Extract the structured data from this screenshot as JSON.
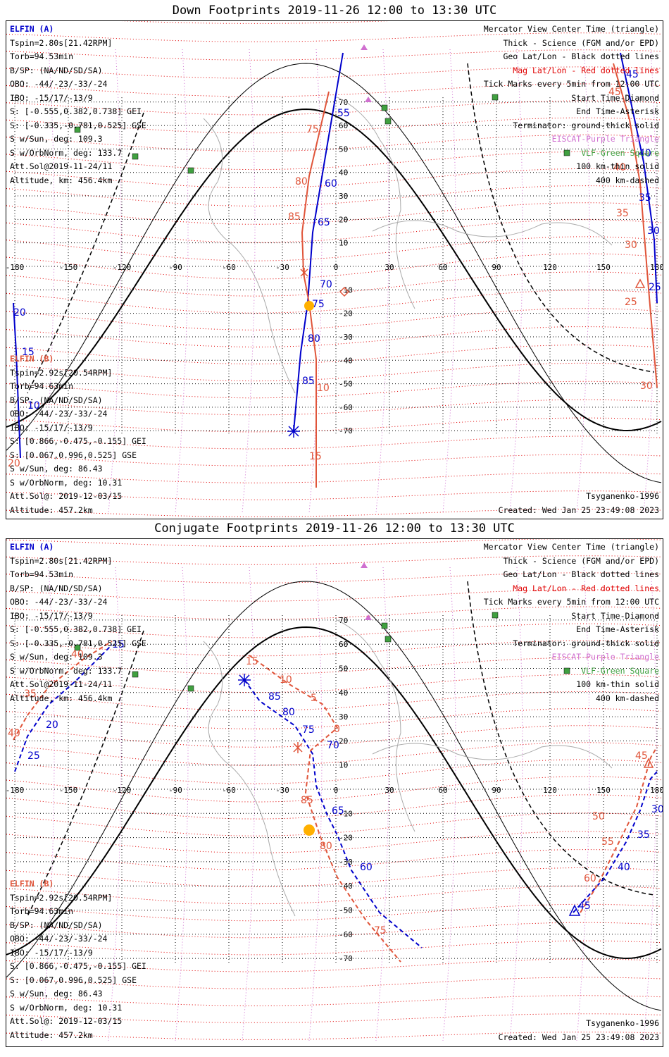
{
  "panels": [
    {
      "title": "Down Footprints 2019-11-26 12:00 to 13:30 UTC",
      "elfin_a": {
        "name": "ELFIN (A)",
        "lines": [
          "Tspin=2.80s[21.42RPM]",
          "Torb=94.53min",
          "B/SP: (NA/ND/SD/SA)",
          "OBO: -44/-23/-33/-24",
          "IBO: -15/17/-13/9",
          "S: [-0.555,0.382,0.738] GEI",
          "S: [-0.335,-0.781,0.525] GSE",
          "S w/Sun, deg: 109.3",
          "S w/OrbNorm, deg: 133.7",
          "Att.Sol@2019-11-24/11",
          "Altitude, km: 456.4km"
        ]
      },
      "elfin_b": {
        "name": "ELFIN (B)",
        "lines": [
          "Tspin=2.92s[20.54RPM]",
          "Torb=94.63min",
          "B/SP: (NA/ND/SD/SA)",
          "OBO: -44/-23/-33/-24",
          "IBO: -15/17/-13/9",
          "S: [0.866,-0.475,-0.155] GEI",
          "S: [0.067,0.996,0.525] GSE",
          "S w/Sun, deg: 86.43",
          "S w/OrbNorm, deg: 10.31",
          "Att.Sol@: 2019-12-03/15",
          "Altitude: 457.2km"
        ]
      },
      "legend": [
        "Mercator View Center Time (triangle)",
        "Thick - Science (FGM and/or EPD)",
        "Geo Lat/Lon - Black dotted lines",
        "Mag Lat/Lon - Red dotted lines",
        "Tick Marks every 5min from 12:00 UTC",
        "Start Time-Diamond",
        "End Time-Asterisk",
        "Terminator: ground-thick solid",
        "EISCAT-Purple Triangle",
        "VLF-Green Square",
        "100 km-thin solid",
        "400 km-dashed"
      ],
      "model": "Tsyganenko-1996",
      "created": "Created: Wed Jan 25 23:49:08 2023"
    },
    {
      "title": "Conjugate Footprints 2019-11-26 12:00 to 13:30 UTC",
      "elfin_a": {
        "name": "ELFIN (A)",
        "lines": [
          "Tspin=2.80s[21.42RPM]",
          "Torb=94.53min",
          "B/SP: (NA/ND/SD/SA)",
          "OBO: -44/-23/-33/-24",
          "IBO: -15/17/-13/9",
          "S: [-0.555,0.382,0.738] GEI",
          "S: [-0.335,-0.781,0.525] GSE",
          "S w/Sun, deg: 109.3",
          "S w/OrbNorm, deg: 133.7",
          "Att.Sol@2019-11-24/11",
          "Altitude, km: 456.4km"
        ]
      },
      "elfin_b": {
        "name": "ELFIN (B)",
        "lines": [
          "Tspin=2.92s[20.54RPM]",
          "Torb=94.63min",
          "B/SP: (NA/ND/SD/SA)",
          "OBO: -44/-23/-33/-24",
          "IBO: -15/17/-13/9",
          "S: [0.866,-0.475,-0.155] GEI",
          "S: [0.067,0.996,0.525] GSE",
          "S w/Sun, deg: 86.43",
          "S w/OrbNorm, deg: 10.31",
          "Att.Sol@: 2019-12-03/15",
          "Altitude: 457.2km"
        ]
      },
      "legend": [
        "Mercator View Center Time (triangle)",
        "Thick - Science (FGM and/or EPD)",
        "Geo Lat/Lon - Black dotted lines",
        "Mag Lat/Lon - Red dotted lines",
        "Tick Marks every 5min from 12:00 UTC",
        "Start Time-Diamond",
        "End Time-Asterisk",
        "Terminator: ground-thick solid",
        "EISCAT-Purple Triangle",
        "VLF-Green Square",
        "100 km-thin solid",
        "400 km-dashed"
      ],
      "model": "Tsyganenko-1996",
      "created": "Created: Wed Jan 25 23:49:08 2023"
    }
  ],
  "axes": {
    "lon_ticks": [
      "-180",
      "-150",
      "-120",
      "-90",
      "-60",
      "-30",
      "0",
      "30",
      "60",
      "90",
      "120",
      "150",
      "180"
    ],
    "lat_ticks": [
      "70",
      "60",
      "50",
      "40",
      "30",
      "20",
      "10",
      "-10",
      "-20",
      "-30",
      "-40",
      "-50",
      "-60",
      "-70"
    ]
  },
  "colors": {
    "elfin_a": "#0000cc",
    "elfin_b": "#e0553a",
    "mag_grid": "#e00000",
    "eiscat": "#d070d0",
    "vlf": "#40a040"
  },
  "tracks": {
    "down_a": [
      [
        55,
        135
      ],
      [
        60,
        235
      ],
      [
        65,
        290
      ],
      [
        70,
        378
      ],
      [
        75,
        406
      ],
      [
        80,
        455
      ],
      [
        85,
        515
      ]
    ],
    "down_a_labels": [
      "55",
      "60",
      "65",
      "70",
      "75",
      "80",
      "85"
    ],
    "down_b": [
      [
        10,
        518
      ],
      [
        15,
        615
      ]
    ],
    "down_b_labels": [
      "10",
      "15"
    ],
    "down_b_right": [
      [
        25,
        403
      ],
      [
        30,
        322
      ],
      [
        35,
        277
      ],
      [
        40,
        212
      ],
      [
        45,
        105
      ]
    ],
    "down_b_right_labels": [
      "25",
      "30",
      "35",
      "40",
      "45"
    ],
    "conj_a_labels": [
      "85",
      "80",
      "75",
      "70",
      "65",
      "60"
    ],
    "conj_b_labels": [
      "15",
      "10",
      "5",
      "0",
      "85",
      "80",
      "75"
    ],
    "conj_a_left_labels": [
      "15",
      "20",
      "25"
    ],
    "conj_b_left_labels": [
      "40",
      "35",
      "40"
    ],
    "conj_a_right_labels": [
      "30",
      "35",
      "40",
      "45"
    ],
    "conj_b_right_labels": [
      "45",
      "50",
      "55",
      "60"
    ]
  }
}
